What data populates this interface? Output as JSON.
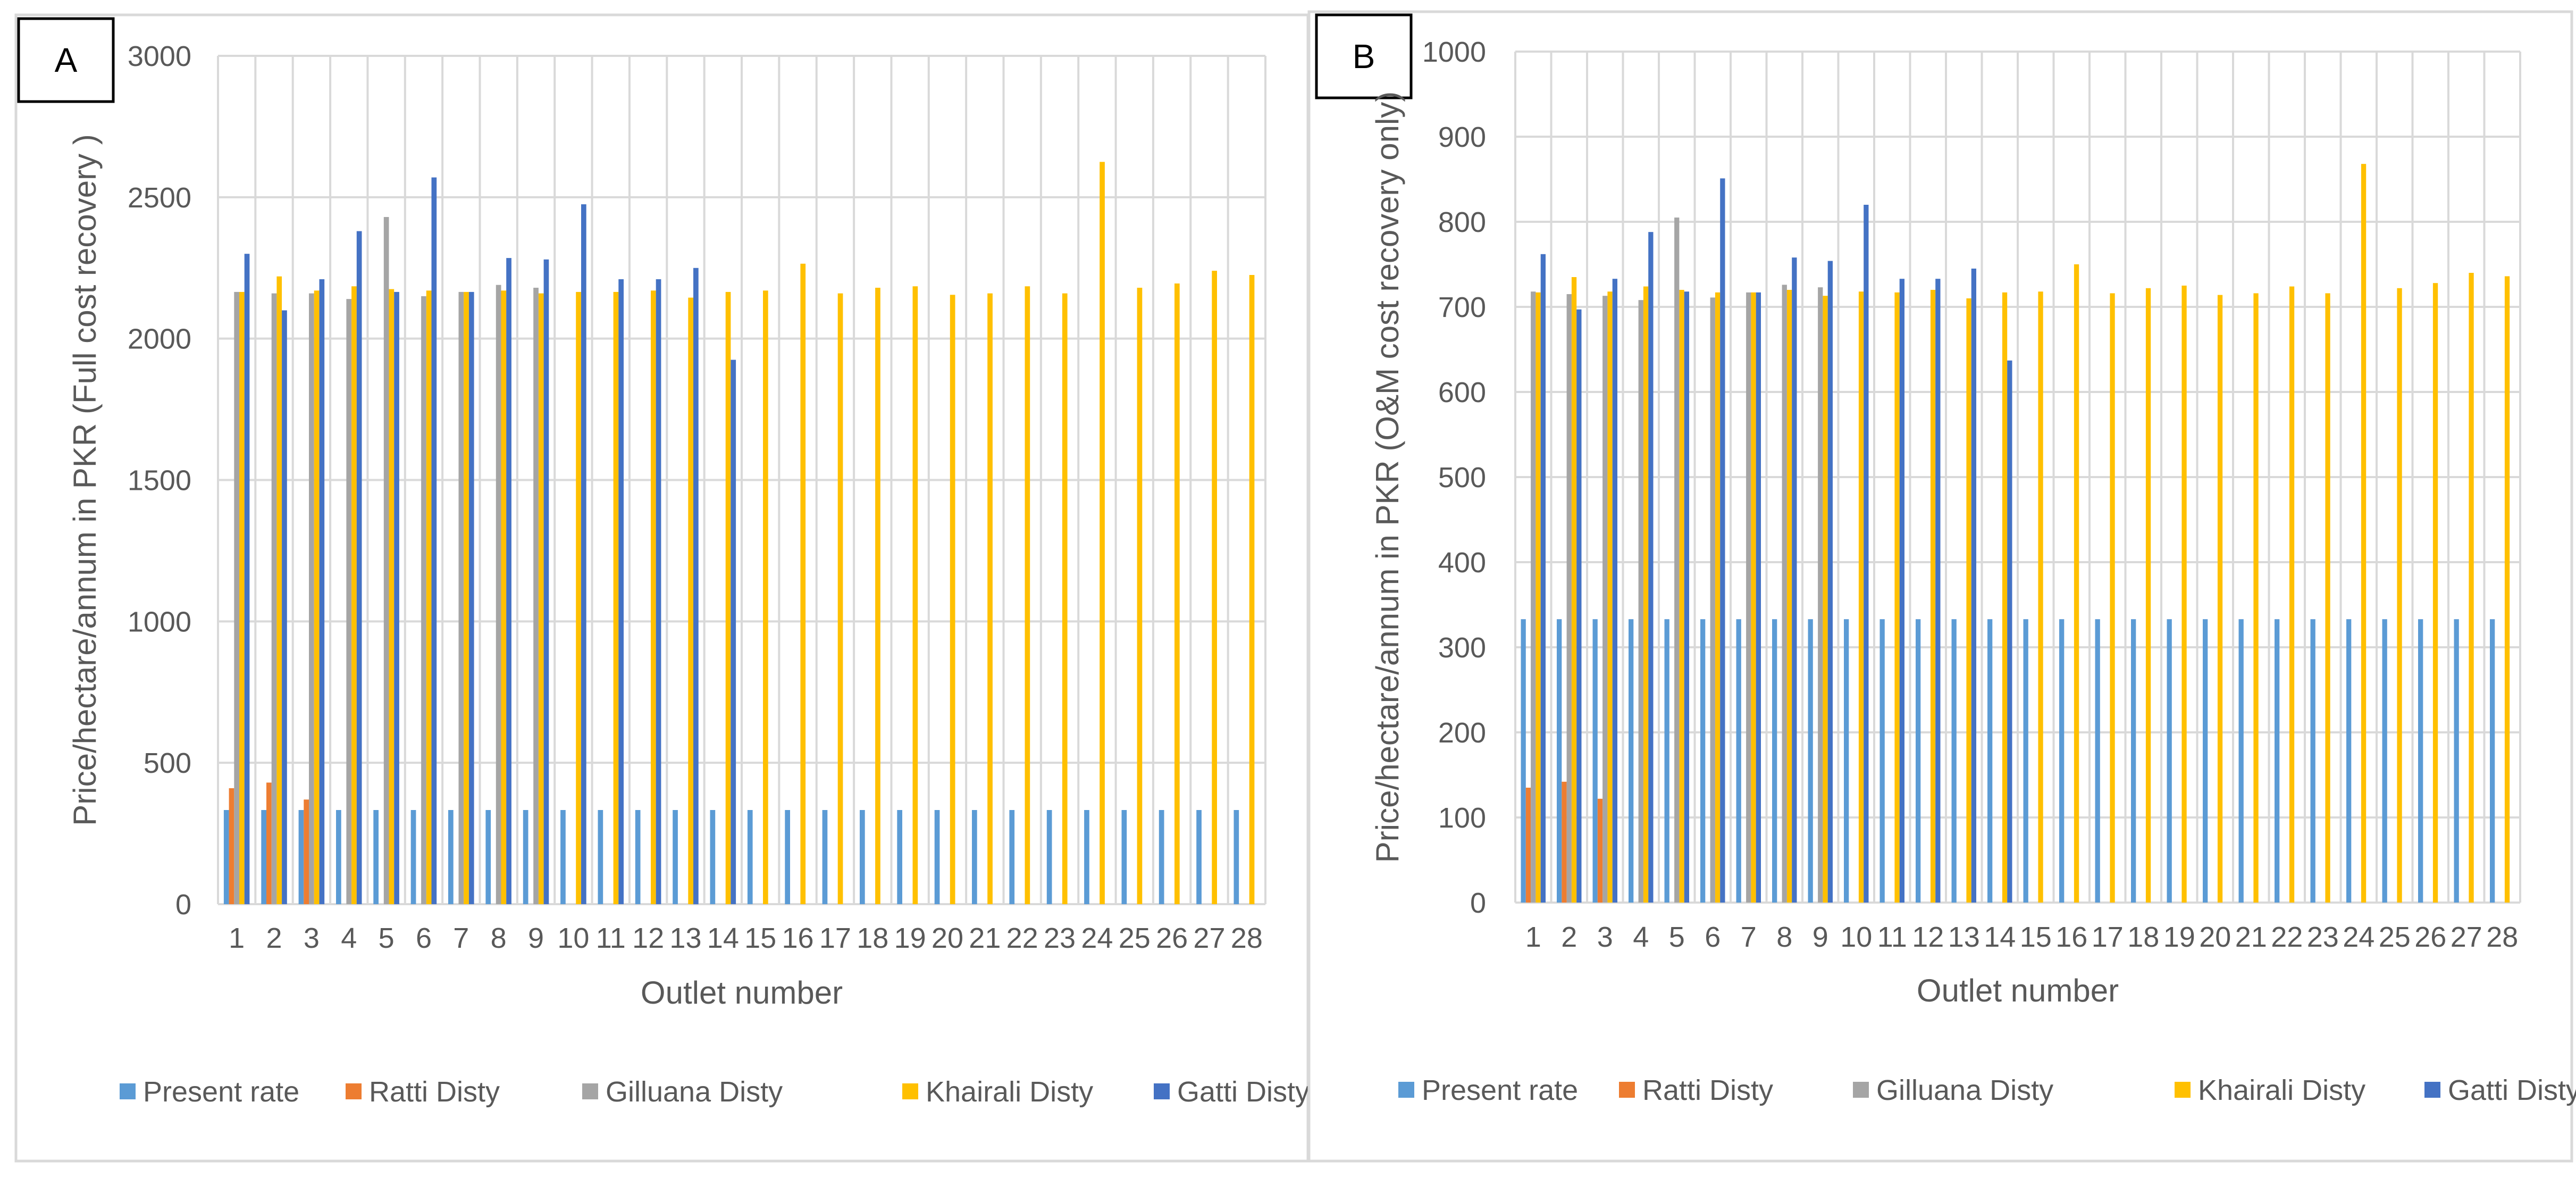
{
  "chart_data": [
    {
      "type": "bar",
      "panel_label": "A",
      "title": "",
      "xlabel": "Outlet number",
      "ylabel": "Price/hectare/annum in PKR (Full cost recovery )",
      "ylim": [
        0,
        3000
      ],
      "yticks": [
        "0",
        "500",
        "1000",
        "1500",
        "2000",
        "2500",
        "3000"
      ],
      "grid": true,
      "legend_position": "bottom",
      "categories": [
        "1",
        "2",
        "3",
        "4",
        "5",
        "6",
        "7",
        "8",
        "9",
        "10",
        "11",
        "12",
        "13",
        "14",
        "15",
        "16",
        "17",
        "18",
        "19",
        "20",
        "21",
        "22",
        "23",
        "24",
        "25",
        "26",
        "27",
        "28"
      ],
      "series": [
        {
          "name": "Present rate",
          "color": "#5B9BD5",
          "values": [
            333,
            333,
            333,
            333,
            333,
            333,
            333,
            333,
            333,
            333,
            333,
            333,
            333,
            333,
            333,
            333,
            333,
            333,
            333,
            333,
            333,
            333,
            333,
            333,
            333,
            333,
            333,
            333
          ]
        },
        {
          "name": "Ratti Disty",
          "color": "#ED7D31",
          "values": [
            410,
            430,
            370,
            null,
            null,
            null,
            null,
            null,
            null,
            null,
            null,
            null,
            null,
            null,
            null,
            null,
            null,
            null,
            null,
            null,
            null,
            null,
            null,
            null,
            null,
            null,
            null,
            null
          ]
        },
        {
          "name": "Gilluana Disty",
          "color": "#A5A5A5",
          "values": [
            2165,
            2160,
            2160,
            2140,
            2430,
            2150,
            2165,
            2190,
            2180,
            null,
            null,
            null,
            null,
            null,
            null,
            null,
            null,
            null,
            null,
            null,
            null,
            null,
            null,
            null,
            null,
            null,
            null,
            null
          ]
        },
        {
          "name": "Khairali Disty",
          "color": "#FFC000",
          "values": [
            2165,
            2220,
            2170,
            2185,
            2175,
            2170,
            2165,
            2170,
            2160,
            2165,
            2165,
            2170,
            2145,
            2165,
            2170,
            2265,
            2160,
            2180,
            2185,
            2155,
            2160,
            2185,
            2160,
            2625,
            2180,
            2195,
            2240,
            2225
          ]
        },
        {
          "name": "Gatti Disty",
          "color": "#4472C4",
          "values": [
            2300,
            2100,
            2210,
            2380,
            2165,
            2570,
            2165,
            2285,
            2280,
            2475,
            2210,
            2210,
            2250,
            1925,
            null,
            null,
            null,
            null,
            null,
            null,
            null,
            null,
            null,
            null,
            null,
            null,
            null,
            null
          ]
        }
      ]
    },
    {
      "type": "bar",
      "panel_label": "B",
      "title": "",
      "xlabel": "Outlet number",
      "ylabel": "Price/hectare/annum in PKR (O&M cost recovery only)",
      "ylim": [
        0,
        1000
      ],
      "yticks": [
        "0",
        "100",
        "200",
        "300",
        "400",
        "500",
        "600",
        "700",
        "800",
        "900",
        "1000"
      ],
      "grid": true,
      "legend_position": "bottom",
      "categories": [
        "1",
        "2",
        "3",
        "4",
        "5",
        "6",
        "7",
        "8",
        "9",
        "10",
        "11",
        "12",
        "13",
        "14",
        "15",
        "16",
        "17",
        "18",
        "19",
        "20",
        "21",
        "22",
        "23",
        "24",
        "25",
        "26",
        "27",
        "28"
      ],
      "series": [
        {
          "name": "Present rate",
          "color": "#5B9BD5",
          "values": [
            333,
            333,
            333,
            333,
            333,
            333,
            333,
            333,
            333,
            333,
            333,
            333,
            333,
            333,
            333,
            333,
            333,
            333,
            333,
            333,
            333,
            333,
            333,
            333,
            333,
            333,
            333,
            333
          ]
        },
        {
          "name": "Ratti Disty",
          "color": "#ED7D31",
          "values": [
            135,
            142,
            122,
            null,
            null,
            null,
            null,
            null,
            null,
            null,
            null,
            null,
            null,
            null,
            null,
            null,
            null,
            null,
            null,
            null,
            null,
            null,
            null,
            null,
            null,
            null,
            null,
            null
          ]
        },
        {
          "name": "Gilluana Disty",
          "color": "#A5A5A5",
          "values": [
            718,
            715,
            713,
            708,
            805,
            711,
            717,
            726,
            723,
            null,
            null,
            null,
            null,
            null,
            null,
            null,
            null,
            null,
            null,
            null,
            null,
            null,
            null,
            null,
            null,
            null,
            null,
            null
          ]
        },
        {
          "name": "Khairali Disty",
          "color": "#FFC000",
          "values": [
            717,
            735,
            718,
            724,
            720,
            717,
            717,
            720,
            713,
            718,
            717,
            720,
            710,
            717,
            718,
            750,
            716,
            722,
            725,
            714,
            716,
            724,
            716,
            868,
            722,
            728,
            740,
            736
          ]
        },
        {
          "name": "Gatti Disty",
          "color": "#4472C4",
          "values": [
            762,
            697,
            733,
            788,
            718,
            851,
            717,
            758,
            754,
            820,
            733,
            733,
            745,
            637,
            null,
            null,
            null,
            null,
            null,
            null,
            null,
            null,
            null,
            null,
            null,
            null,
            null,
            null
          ]
        }
      ]
    }
  ]
}
